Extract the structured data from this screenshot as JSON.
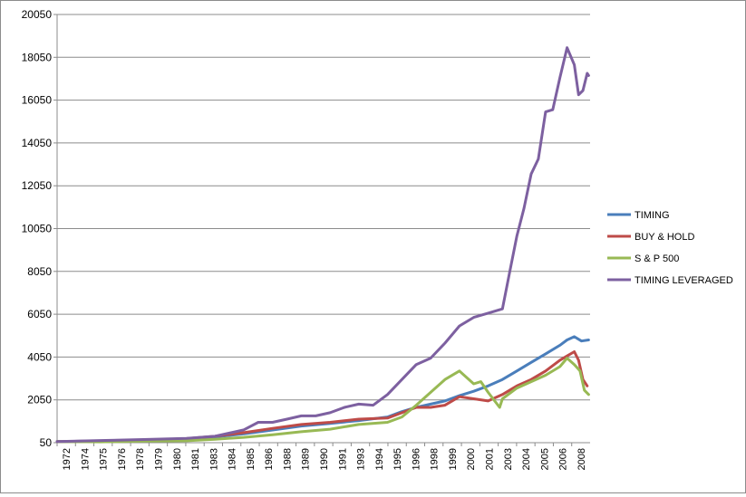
{
  "chart_data": {
    "type": "line",
    "title": "",
    "xlabel": "",
    "ylabel": "",
    "ylim": [
      50,
      20050
    ],
    "yticks": [
      50,
      2050,
      4050,
      6050,
      8050,
      10050,
      12050,
      14050,
      16050,
      18050,
      20050
    ],
    "ytick_labels": [
      "50",
      "2050",
      "4050",
      "6050",
      "8050",
      "10050",
      "12050",
      "14050",
      "16050",
      "18050",
      "20050"
    ],
    "xlim": [
      1972.0,
      2009.1
    ],
    "xtick_labels": [
      "1972",
      "1974",
      "1975",
      "1976",
      "1978",
      "1979",
      "1980",
      "1981",
      "1983",
      "1984",
      "1985",
      "1986",
      "1988",
      "1989",
      "1990",
      "1991",
      "1993",
      "1994",
      "1995",
      "1996",
      "1998",
      "1999",
      "2000",
      "2001",
      "2003",
      "2004",
      "2005",
      "2006",
      "2008"
    ],
    "grid": "horizontal",
    "legend_position": "right",
    "series": [
      {
        "name": "TIMING",
        "color": "#4a7ebb",
        "x": [
          1972,
          1975,
          1978,
          1981,
          1983,
          1985,
          1987,
          1989,
          1991,
          1993,
          1995,
          1996,
          1997,
          1998,
          1999,
          2000,
          2001,
          2002,
          2003,
          2004,
          2005,
          2006,
          2007,
          2007.5,
          2008,
          2008.5,
          2009
        ],
        "values": [
          100,
          130,
          165,
          230,
          320,
          460,
          640,
          830,
          950,
          1080,
          1250,
          1500,
          1700,
          1850,
          2000,
          2250,
          2450,
          2700,
          3000,
          3400,
          3800,
          4200,
          4600,
          4850,
          5000,
          4800,
          4850
        ]
      },
      {
        "name": "BUY & HOLD",
        "color": "#be4b48",
        "x": [
          1972,
          1975,
          1978,
          1981,
          1983,
          1985,
          1987,
          1989,
          1991,
          1993,
          1995,
          1996,
          1997,
          1998,
          1999,
          2000,
          2001,
          2002,
          2003,
          2004,
          2005,
          2006,
          2007,
          2007.5,
          2008,
          2008.3,
          2008.6,
          2008.9
        ],
        "values": [
          100,
          130,
          170,
          240,
          350,
          520,
          720,
          900,
          1000,
          1150,
          1200,
          1450,
          1700,
          1700,
          1800,
          2200,
          2100,
          2000,
          2300,
          2700,
          3000,
          3400,
          3900,
          4100,
          4300,
          3900,
          3000,
          2700
        ]
      },
      {
        "name": "S & P 500",
        "color": "#98b954",
        "x": [
          1972,
          1975,
          1978,
          1981,
          1983,
          1985,
          1987,
          1989,
          1991,
          1993,
          1995,
          1996,
          1997,
          1998,
          1999,
          2000,
          2001,
          2001.5,
          2002,
          2002.8,
          2003,
          2004,
          2005,
          2006,
          2007,
          2007.5,
          2008,
          2008.4,
          2008.7,
          2009
        ],
        "values": [
          100,
          90,
          120,
          140,
          210,
          300,
          420,
          560,
          680,
          900,
          1000,
          1250,
          1800,
          2400,
          3000,
          3400,
          2800,
          2900,
          2400,
          1700,
          2100,
          2600,
          2900,
          3200,
          3600,
          4000,
          3700,
          3400,
          2500,
          2300
        ]
      },
      {
        "name": "TIMING LEVERAGED",
        "color": "#7d60a0",
        "x": [
          1972,
          1975,
          1978,
          1981,
          1983,
          1985,
          1986,
          1987,
          1988,
          1989,
          1990,
          1991,
          1992,
          1993,
          1994,
          1995,
          1996,
          1997,
          1998,
          1999,
          2000,
          2001,
          2002,
          2003,
          2003.5,
          2004,
          2004.5,
          2005,
          2005.5,
          2006,
          2006.5,
          2007,
          2007.5,
          2008,
          2008.3,
          2008.6,
          2008.9,
          2009
        ],
        "values": [
          100,
          150,
          200,
          250,
          350,
          650,
          1000,
          1000,
          1150,
          1300,
          1300,
          1450,
          1700,
          1850,
          1800,
          2300,
          3000,
          3700,
          4000,
          4700,
          5500,
          5900,
          6100,
          6300,
          8000,
          9700,
          11000,
          12600,
          13300,
          15500,
          15600,
          17100,
          18500,
          17700,
          16300,
          16500,
          17300,
          17200
        ]
      }
    ]
  }
}
